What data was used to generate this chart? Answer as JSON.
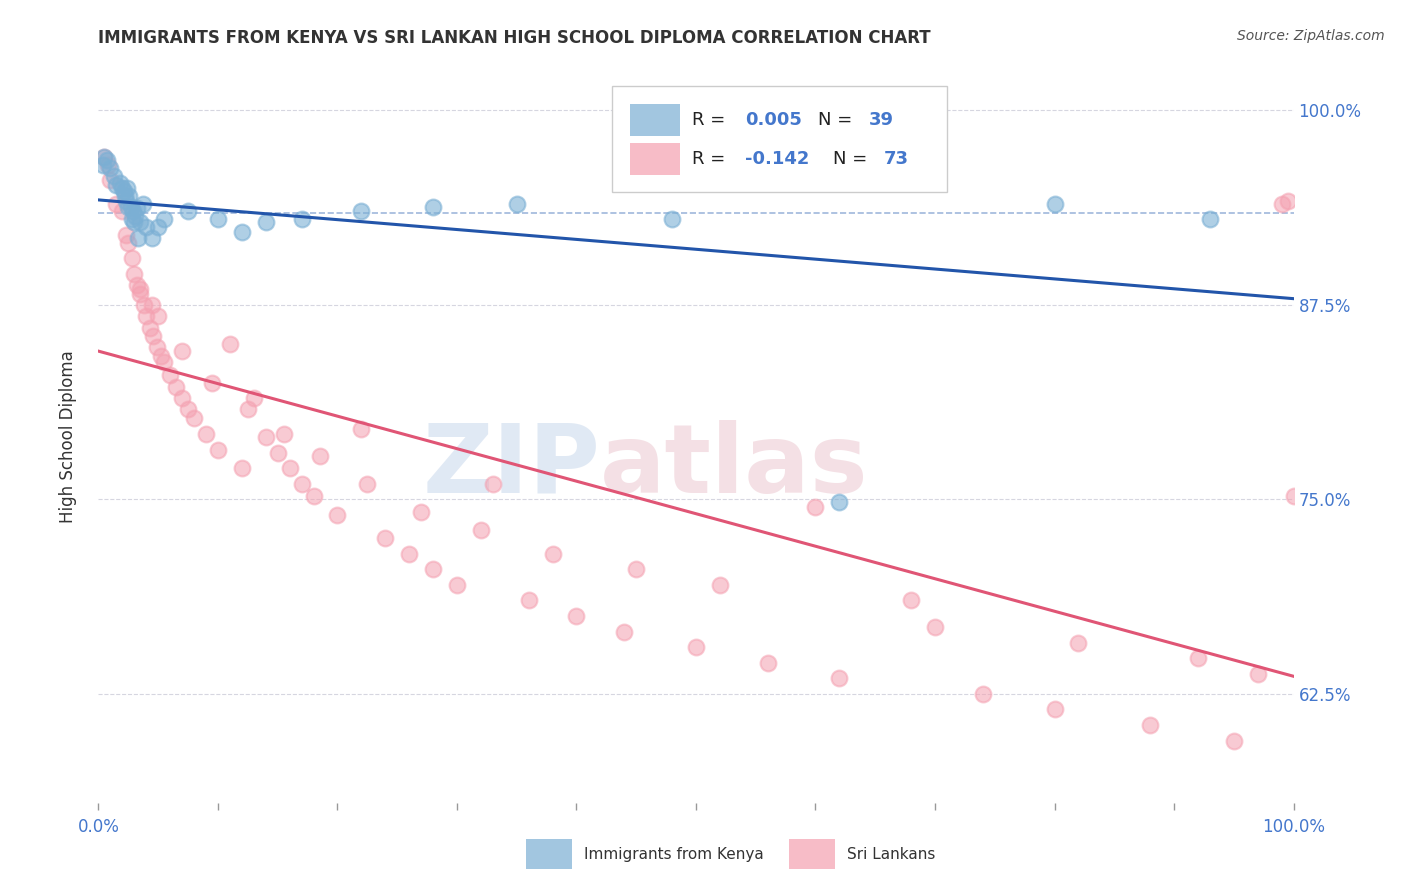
{
  "title": "IMMIGRANTS FROM KENYA VS SRI LANKAN HIGH SCHOOL DIPLOMA CORRELATION CHART",
  "source": "Source: ZipAtlas.com",
  "ylabel": "High School Diploma",
  "ytick_labels": [
    "100.0%",
    "87.5%",
    "75.0%",
    "62.5%"
  ],
  "ytick_values": [
    1.0,
    0.875,
    0.75,
    0.625
  ],
  "legend_kenya": "Immigrants from Kenya",
  "legend_srilanka": "Sri Lankans",
  "R_blue": "0.005",
  "N_blue": "39",
  "R_pink": "-0.142",
  "N_pink": "73",
  "blue_color": "#7BAFD4",
  "pink_color": "#F4A0B0",
  "trend_blue_color": "#2255AA",
  "trend_pink_color": "#E05575",
  "grid_color": "#BBBBCC",
  "mean_line_color": "#7799CC",
  "text_color": "#333333",
  "axis_color": "#4477CC",
  "xlim": [
    0.0,
    100.0
  ],
  "ylim": [
    0.555,
    1.025
  ],
  "kenya_x": [
    0.4,
    0.5,
    0.7,
    1.0,
    1.3,
    1.5,
    1.8,
    2.0,
    2.1,
    2.2,
    2.3,
    2.4,
    2.5,
    2.6,
    2.7,
    2.8,
    2.9,
    3.0,
    3.1,
    3.2,
    3.3,
    3.5,
    3.7,
    4.0,
    4.5,
    5.0,
    5.5,
    7.5,
    10.0,
    12.0,
    14.0,
    17.0,
    22.0,
    28.0,
    35.0,
    48.0,
    62.0,
    80.0,
    93.0
  ],
  "kenya_y": [
    0.965,
    0.97,
    0.968,
    0.963,
    0.958,
    0.952,
    0.953,
    0.95,
    0.948,
    0.945,
    0.942,
    0.95,
    0.938,
    0.945,
    0.938,
    0.93,
    0.935,
    0.928,
    0.932,
    0.937,
    0.918,
    0.928,
    0.94,
    0.925,
    0.918,
    0.925,
    0.93,
    0.935,
    0.93,
    0.922,
    0.928,
    0.93,
    0.935,
    0.938,
    0.94,
    0.93,
    0.748,
    0.94,
    0.93
  ],
  "srilanka_x": [
    0.5,
    0.8,
    1.0,
    1.5,
    2.0,
    2.3,
    2.5,
    2.8,
    3.0,
    3.2,
    3.5,
    3.8,
    4.0,
    4.3,
    4.6,
    4.9,
    5.2,
    5.5,
    6.0,
    6.5,
    7.0,
    7.5,
    8.0,
    9.0,
    10.0,
    11.0,
    12.0,
    13.0,
    14.0,
    15.0,
    16.0,
    17.0,
    18.0,
    20.0,
    22.0,
    24.0,
    26.0,
    28.0,
    30.0,
    33.0,
    36.0,
    40.0,
    44.0,
    50.0,
    56.0,
    62.0,
    68.0,
    74.0,
    80.0,
    88.0,
    95.0,
    3.5,
    5.0,
    7.0,
    9.5,
    12.5,
    15.5,
    18.5,
    22.5,
    27.0,
    32.0,
    38.0,
    45.0,
    52.0,
    60.0,
    70.0,
    82.0,
    92.0,
    97.0,
    99.0,
    99.5,
    100.0,
    4.5
  ],
  "srilanka_y": [
    0.97,
    0.965,
    0.955,
    0.94,
    0.935,
    0.92,
    0.915,
    0.905,
    0.895,
    0.888,
    0.882,
    0.875,
    0.868,
    0.86,
    0.855,
    0.848,
    0.842,
    0.838,
    0.83,
    0.822,
    0.815,
    0.808,
    0.802,
    0.792,
    0.782,
    0.85,
    0.77,
    0.815,
    0.79,
    0.78,
    0.77,
    0.76,
    0.752,
    0.74,
    0.795,
    0.725,
    0.715,
    0.705,
    0.695,
    0.76,
    0.685,
    0.675,
    0.665,
    0.655,
    0.645,
    0.635,
    0.685,
    0.625,
    0.615,
    0.605,
    0.595,
    0.885,
    0.868,
    0.845,
    0.825,
    0.808,
    0.792,
    0.778,
    0.76,
    0.742,
    0.73,
    0.715,
    0.705,
    0.695,
    0.745,
    0.668,
    0.658,
    0.648,
    0.638,
    0.94,
    0.942,
    0.752,
    0.875
  ],
  "xtick_positions": [
    0,
    10,
    20,
    30,
    40,
    50,
    60,
    70,
    80,
    90,
    100
  ],
  "bg_color": "#FFFFFF"
}
